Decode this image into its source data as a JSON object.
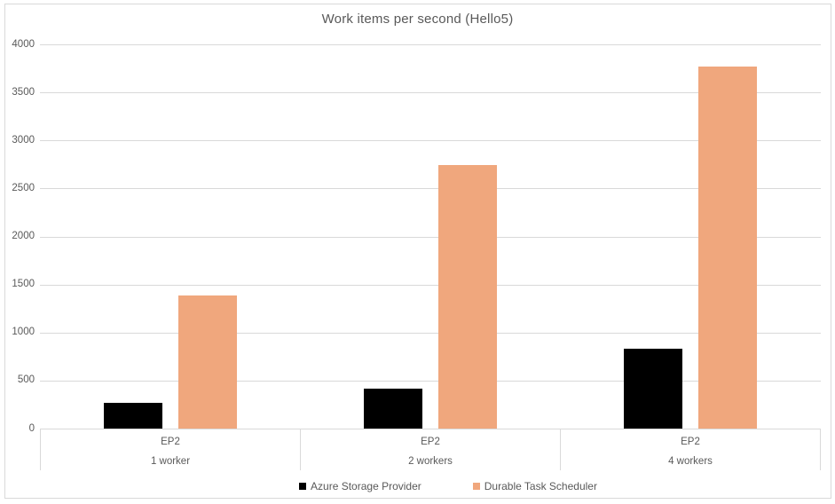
{
  "window": {
    "background": "#FFFFFF",
    "frame_border_color": "#D9D9D9"
  },
  "chart_data": {
    "type": "bar",
    "title": "Work items per second (Hello5)",
    "categories": [
      "EP2",
      "EP2",
      "EP2"
    ],
    "subcategories": [
      "1 worker",
      "2 workers",
      "4 workers"
    ],
    "series": [
      {
        "name": "Azure Storage Provider",
        "color": "#000000",
        "values": [
          265,
          415,
          830
        ]
      },
      {
        "name": "Durable Task Scheduler",
        "color": "#F0A77D",
        "values": [
          1390,
          2740,
          3770
        ]
      }
    ],
    "ylim": [
      0,
      4000
    ],
    "ytick_step": 500,
    "yticks": [
      0,
      500,
      1000,
      1500,
      2000,
      2500,
      3000,
      3500,
      4000
    ],
    "xlabel": "",
    "ylabel": "",
    "grid": true,
    "legend_position": "bottom",
    "style": {
      "text_color": "#595959",
      "grid_color": "#D9D9D9"
    }
  }
}
